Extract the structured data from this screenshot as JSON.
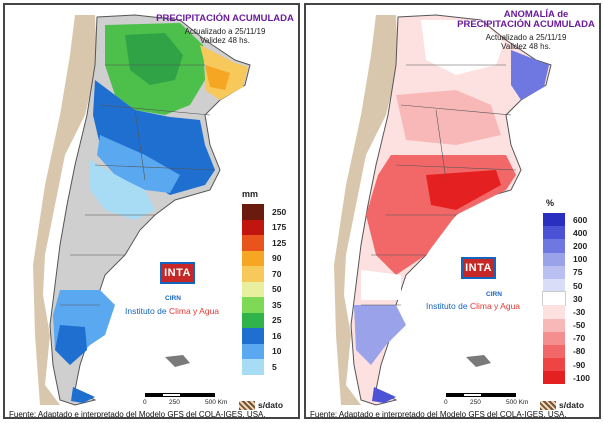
{
  "panel_left": {
    "title_line1": "PRECIPITACIÓN ACUMULADA",
    "updated": "Actualizado a 25/11/19",
    "validity": "Validez 48 hs.",
    "legend_unit": "mm",
    "legend": [
      {
        "label": "250",
        "color": "#6b1a0e"
      },
      {
        "label": "175",
        "color": "#c0160f"
      },
      {
        "label": "125",
        "color": "#e8541c"
      },
      {
        "label": "90",
        "color": "#f5a623"
      },
      {
        "label": "70",
        "color": "#f7c95a"
      },
      {
        "label": "50",
        "color": "#e8f0a0"
      },
      {
        "label": "35",
        "color": "#7ed957"
      },
      {
        "label": "25",
        "color": "#2fb34a"
      },
      {
        "label": "16",
        "color": "#1f6fd0"
      },
      {
        "label": "10",
        "color": "#5aa8f0"
      },
      {
        "label": "5",
        "color": "#a8dcf5"
      }
    ],
    "no_data_label": "s/dato"
  },
  "panel_right": {
    "title_line1": "ANOMALÍA de",
    "title_line2": "PRECIPITACIÓN ACUMULADA",
    "updated": "Actualizado a 25/11/19",
    "validity": "Validez 48 hs.",
    "legend_unit": "%",
    "legend": [
      {
        "label": "600",
        "color": "#2a2fc0"
      },
      {
        "label": "400",
        "color": "#4b52d6"
      },
      {
        "label": "200",
        "color": "#6f78e0"
      },
      {
        "label": "100",
        "color": "#9aa2ea"
      },
      {
        "label": "75",
        "color": "#b9bff0"
      },
      {
        "label": "50",
        "color": "#d9ddf7"
      },
      {
        "label": "30",
        "color": "#ffffff"
      },
      {
        "label": "-30",
        "color": "#fde0e0"
      },
      {
        "label": "-50",
        "color": "#f9b8b8"
      },
      {
        "label": "-70",
        "color": "#f58f8f"
      },
      {
        "label": "-80",
        "color": "#f26868"
      },
      {
        "label": "-90",
        "color": "#ef4444"
      },
      {
        "label": "-100",
        "color": "#e52020"
      }
    ],
    "no_data_label": "s/dato"
  },
  "branding": {
    "logo_text": "INTA",
    "cirn": "CIRN",
    "institute_prefix": "Instituto de ",
    "institute_highlight": "Clima y Agua"
  },
  "scale": {
    "labels": [
      "0",
      "250",
      "500 Km"
    ]
  },
  "source": "Fuente: Adaptado e interpretado del Modelo GFS del COLA-IGES, USA.",
  "colors": {
    "title": "#6a1b9a",
    "inta_red": "#c62828",
    "inta_blue": "#1565c0"
  }
}
